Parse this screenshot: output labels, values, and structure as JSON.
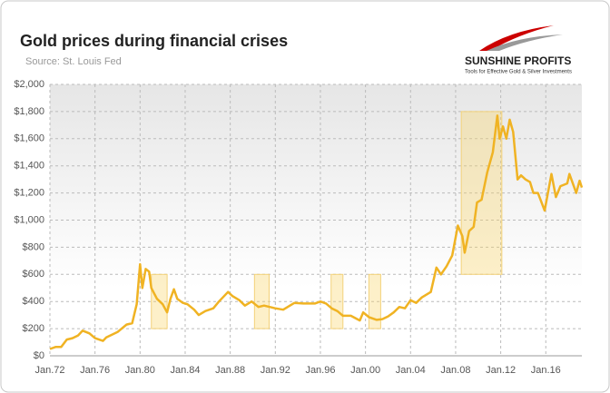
{
  "chart_data": {
    "type": "line",
    "title": "Gold prices during financial crises",
    "subtitle": "Source: St. Louis Fed",
    "logo": {
      "name": "SUNSHINE PROFITS",
      "tagline": "Tools for Effective Gold & Silver Investments"
    },
    "x": [
      1972,
      1972.5,
      1973,
      1973.5,
      1974,
      1974.5,
      1974.9,
      1975.5,
      1976,
      1976.7,
      1977,
      1978,
      1978.8,
      1979.3,
      1979.7,
      1980,
      1980.2,
      1980.5,
      1980.8,
      1981,
      1981.5,
      1982,
      1982.4,
      1982.7,
      1983,
      1983.3,
      1983.8,
      1984.2,
      1984.8,
      1985.2,
      1985.8,
      1986.5,
      1987,
      1987.8,
      1988.2,
      1988.8,
      1989.3,
      1989.9,
      1990.5,
      1991,
      1991.5,
      1992,
      1992.7,
      1993.3,
      1993.7,
      1994.5,
      1995.5,
      1996,
      1996.5,
      1997,
      1997.5,
      1998,
      1998.7,
      1999.5,
      1999.8,
      2000.3,
      2001,
      2001.5,
      2002,
      2002.5,
      2003,
      2003.5,
      2004,
      2004.5,
      2005,
      2005.8,
      2006.3,
      2006.7,
      2007.2,
      2007.7,
      2008.2,
      2008.6,
      2008.8,
      2009.2,
      2009.6,
      2009.9,
      2010.3,
      2010.8,
      2011.3,
      2011.7,
      2011.9,
      2012.2,
      2012.5,
      2012.8,
      2013.1,
      2013.5,
      2013.8,
      2014.2,
      2014.6,
      2014.9,
      2015.3,
      2015.9,
      2016.5,
      2016.9,
      2017.3,
      2017.9,
      2018.1,
      2018.7,
      2019,
      2019.2
    ],
    "series": [
      {
        "name": "Gold price",
        "color": "#f0b323",
        "values": [
          50,
          65,
          65,
          120,
          130,
          150,
          185,
          165,
          130,
          110,
          135,
          175,
          230,
          240,
          380,
          675,
          500,
          640,
          620,
          500,
          420,
          380,
          320,
          420,
          490,
          420,
          390,
          380,
          340,
          300,
          330,
          350,
          400,
          470,
          440,
          410,
          370,
          400,
          360,
          370,
          360,
          350,
          340,
          370,
          390,
          385,
          385,
          400,
          385,
          350,
          330,
          295,
          295,
          260,
          320,
          285,
          265,
          270,
          290,
          320,
          360,
          350,
          410,
          390,
          430,
          470,
          650,
          600,
          660,
          740,
          960,
          880,
          760,
          920,
          950,
          1130,
          1150,
          1350,
          1500,
          1770,
          1600,
          1690,
          1600,
          1740,
          1650,
          1300,
          1330,
          1300,
          1280,
          1200,
          1200,
          1070,
          1340,
          1170,
          1250,
          1270,
          1340,
          1200,
          1290,
          1240
        ]
      }
    ],
    "highlights": [
      {
        "x": [
          1981,
          1982.4
        ],
        "y": [
          200,
          600
        ]
      },
      {
        "x": [
          1990.15,
          1991.45
        ],
        "y": [
          200,
          600
        ]
      },
      {
        "x": [
          1996.95,
          1998
        ],
        "y": [
          200,
          600
        ]
      },
      {
        "x": [
          2000.3,
          2001.35
        ],
        "y": [
          200,
          600
        ]
      },
      {
        "x": [
          2008.5,
          2012.1
        ],
        "y": [
          600,
          1800
        ]
      }
    ],
    "xlim": [
      1972,
      2019.2
    ],
    "xticks": [
      {
        "value": 1972,
        "label": "Jan.72"
      },
      {
        "value": 1976,
        "label": "Jan.76"
      },
      {
        "value": 1980,
        "label": "Jan.80"
      },
      {
        "value": 1984,
        "label": "Jan.84"
      },
      {
        "value": 1988,
        "label": "Jan.88"
      },
      {
        "value": 1992,
        "label": "Jan.92"
      },
      {
        "value": 1996,
        "label": "Jan.96"
      },
      {
        "value": 2000,
        "label": "Jan.00"
      },
      {
        "value": 2004,
        "label": "Jan.04"
      },
      {
        "value": 2008,
        "label": "Jan.08"
      },
      {
        "value": 2012,
        "label": "Jan.12"
      },
      {
        "value": 2016,
        "label": "Jan.16"
      }
    ],
    "ylim": [
      0,
      2000
    ],
    "yticks": [
      {
        "value": 0,
        "label": "$0"
      },
      {
        "value": 200,
        "label": "$200"
      },
      {
        "value": 400,
        "label": "$400"
      },
      {
        "value": 600,
        "label": "$600"
      },
      {
        "value": 800,
        "label": "$800"
      },
      {
        "value": 1000,
        "label": "$1,000"
      },
      {
        "value": 1200,
        "label": "$1,200"
      },
      {
        "value": 1400,
        "label": "$1,400"
      },
      {
        "value": 1600,
        "label": "$1,600"
      },
      {
        "value": 1800,
        "label": "$1,800"
      },
      {
        "value": 2000,
        "label": "$2,000"
      }
    ],
    "grid": true
  }
}
